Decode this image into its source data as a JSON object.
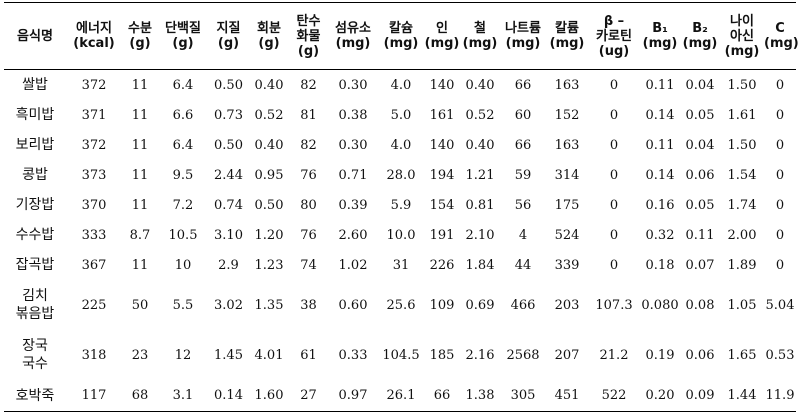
{
  "table": {
    "headers": [
      [
        "음식명"
      ],
      [
        "에너지",
        "(kcal)"
      ],
      [
        "수분",
        "(g)"
      ],
      [
        "단백질",
        "(g)"
      ],
      [
        "지질",
        "(g)"
      ],
      [
        "회분",
        "(g)"
      ],
      [
        "탄수",
        "화물",
        "(g)"
      ],
      [
        "섬유소",
        "(mg)"
      ],
      [
        "칼슘",
        "(mg)"
      ],
      [
        "인",
        "(mg)"
      ],
      [
        "철",
        "(mg)"
      ],
      [
        "나트륨",
        "(mg)"
      ],
      [
        "칼륨",
        "(mg)"
      ],
      [
        "β –",
        "카로틴",
        "(ug)"
      ],
      [
        "B₁",
        "(mg)"
      ],
      [
        "B₂",
        "(mg)"
      ],
      [
        "나이",
        "아신",
        "(mg)"
      ],
      [
        "C",
        "(mg)"
      ]
    ],
    "rows": [
      {
        "food": [
          "쌀밥"
        ],
        "values": [
          "372",
          "11",
          "6.4",
          "0.50",
          "0.40",
          "82",
          "0.30",
          "4.0",
          "140",
          "0.40",
          "66",
          "163",
          "0",
          "0.11",
          "0.04",
          "1.50",
          "0"
        ]
      },
      {
        "food": [
          "흑미밥"
        ],
        "values": [
          "371",
          "11",
          "6.6",
          "0.73",
          "0.52",
          "81",
          "0.38",
          "5.0",
          "161",
          "0.52",
          "60",
          "152",
          "0",
          "0.14",
          "0.05",
          "1.61",
          "0"
        ]
      },
      {
        "food": [
          "보리밥"
        ],
        "values": [
          "372",
          "11",
          "6.4",
          "0.50",
          "0.40",
          "82",
          "0.30",
          "4.0",
          "140",
          "0.40",
          "66",
          "163",
          "0",
          "0.11",
          "0.04",
          "1.50",
          "0"
        ]
      },
      {
        "food": [
          "콩밥"
        ],
        "values": [
          "373",
          "11",
          "9.5",
          "2.44",
          "0.95",
          "76",
          "0.71",
          "28.0",
          "194",
          "1.21",
          "59",
          "314",
          "0",
          "0.14",
          "0.06",
          "1.54",
          "0"
        ]
      },
      {
        "food": [
          "기장밥"
        ],
        "values": [
          "370",
          "11",
          "7.2",
          "0.74",
          "0.50",
          "80",
          "0.39",
          "5.9",
          "154",
          "0.81",
          "56",
          "175",
          "0",
          "0.16",
          "0.05",
          "1.74",
          "0"
        ]
      },
      {
        "food": [
          "수수밥"
        ],
        "values": [
          "333",
          "8.7",
          "10.5",
          "3.10",
          "1.20",
          "76",
          "2.60",
          "10.0",
          "191",
          "2.10",
          "4",
          "524",
          "0",
          "0.32",
          "0.11",
          "2.00",
          "0"
        ]
      },
      {
        "food": [
          "잡곡밥"
        ],
        "values": [
          "367",
          "11",
          "10",
          "2.9",
          "1.23",
          "74",
          "1.02",
          "31",
          "226",
          "1.84",
          "44",
          "339",
          "0",
          "0.18",
          "0.07",
          "1.89",
          "0"
        ]
      },
      {
        "food": [
          "김치",
          "볶음밥"
        ],
        "values": [
          "225",
          "50",
          "5.5",
          "3.02",
          "1.35",
          "38",
          "0.60",
          "25.6",
          "109",
          "0.69",
          "466",
          "203",
          "107.3",
          "0.080",
          "0.08",
          "1.05",
          "5.04"
        ]
      },
      {
        "food": [
          "장국",
          "국수"
        ],
        "values": [
          "318",
          "23",
          "12",
          "1.45",
          "4.01",
          "61",
          "0.33",
          "104.5",
          "185",
          "2.16",
          "2568",
          "207",
          "21.2",
          "0.19",
          "0.06",
          "1.65",
          "0.53"
        ]
      },
      {
        "food": [
          "호박죽"
        ],
        "values": [
          "117",
          "68",
          "3.1",
          "0.14",
          "1.60",
          "27",
          "0.97",
          "26.1",
          "66",
          "1.38",
          "305",
          "451",
          "522",
          "0.20",
          "0.09",
          "1.44",
          "11.9"
        ]
      }
    ]
  }
}
